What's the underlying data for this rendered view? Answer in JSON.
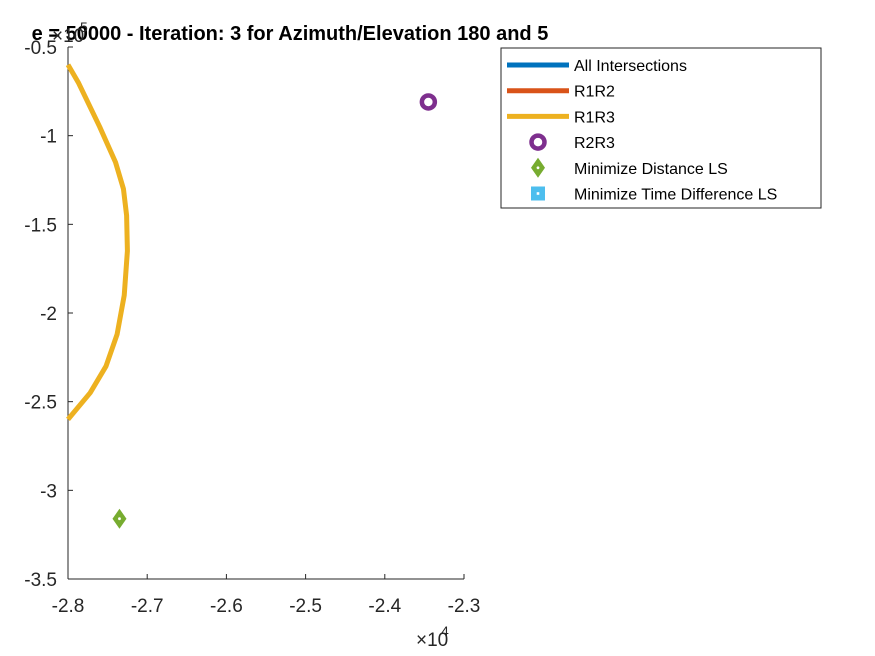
{
  "chart_data": {
    "type": "line",
    "title": "e = 50000 - Iteration: 3 for Azimuth/Elevation 180 and 5",
    "xlabel": "",
    "ylabel": "",
    "xlim": [
      -28000,
      -23000
    ],
    "ylim": [
      -350000,
      -50000
    ],
    "x_ticks": [
      -28000,
      -27000,
      -26000,
      -25000,
      -24000,
      -23000
    ],
    "x_tick_labels": [
      "-2.8",
      "-2.7",
      "-2.6",
      "-2.5",
      "-2.4",
      "-2.3"
    ],
    "y_ticks": [
      -350000,
      -300000,
      -250000,
      -200000,
      -150000,
      -100000,
      -50000
    ],
    "y_tick_labels": [
      "-3.5",
      "-3",
      "-2.5",
      "-2",
      "-1.5",
      "-1",
      "-0.5"
    ],
    "x_exponent": {
      "base": "×10",
      "power": "4"
    },
    "y_exponent": {
      "base": "×10",
      "power": "5"
    },
    "grid": false,
    "legend_position": "top-right",
    "series": [
      {
        "name": "All Intersections",
        "style": "line",
        "color": "#0072BD",
        "x": [],
        "y": []
      },
      {
        "name": "R1R2",
        "style": "line",
        "color": "#D95319",
        "x": [],
        "y": []
      },
      {
        "name": "R1R3",
        "style": "line",
        "color": "#EDB120",
        "x": [
          -28000,
          -27870,
          -27600,
          -27400,
          -27300,
          -27260,
          -27250,
          -27290,
          -27380,
          -27520,
          -27720,
          -28000
        ],
        "y": [
          -60000,
          -70000,
          -95000,
          -115000,
          -130000,
          -145000,
          -165000,
          -190000,
          -212000,
          -230000,
          -245000,
          -260000
        ]
      },
      {
        "name": "R2R3",
        "style": "marker-circle",
        "color": "#7E2F8E",
        "x": [
          -23450
        ],
        "y": [
          -81000
        ]
      },
      {
        "name": "Minimize Distance LS",
        "style": "marker-diamond",
        "color": "#77AC30",
        "x": [
          -27350
        ],
        "y": [
          -316000
        ]
      },
      {
        "name": "Minimize Time Difference LS",
        "style": "marker-square",
        "color": "#4DBEEE",
        "x": [],
        "y": []
      }
    ]
  }
}
